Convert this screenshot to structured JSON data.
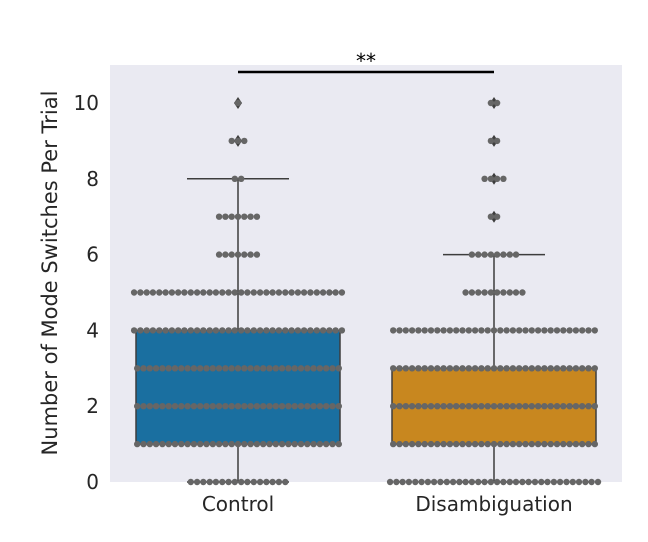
{
  "chart_data": {
    "type": "box",
    "ylabel": "Number of Mode Switches Per Trial",
    "xlabel": "",
    "ylim": [
      0,
      11
    ],
    "yticks": [
      0,
      2,
      4,
      6,
      8,
      10
    ],
    "categories": [
      "Control",
      "Disambiguation"
    ],
    "grid": false,
    "background": "#eaeaf2",
    "swarm_color": "#666666",
    "boxes": [
      {
        "name": "Control",
        "color": "#1a6fa0",
        "whisker_low": 0,
        "q1": 1,
        "median": 3,
        "q3": 4,
        "whisker_high": 8,
        "outliers": [
          9,
          10
        ],
        "swarm": [
          {
            "value": 0,
            "count": 16
          },
          {
            "value": 1,
            "count": 57
          },
          {
            "value": 2,
            "count": 57
          },
          {
            "value": 3,
            "count": 57
          },
          {
            "value": 4,
            "count": 44
          },
          {
            "value": 5,
            "count": 34
          },
          {
            "value": 6,
            "count": 7
          },
          {
            "value": 7,
            "count": 7
          },
          {
            "value": 8,
            "count": 2
          },
          {
            "value": 9,
            "count": 3
          },
          {
            "value": 10,
            "count": 1
          }
        ]
      },
      {
        "name": "Disambiguation",
        "color": "#c8871f",
        "whisker_low": 0,
        "q1": 1,
        "median": 2,
        "q3": 3,
        "whisker_high": 6,
        "outliers": [
          7,
          8,
          9,
          10
        ],
        "swarm": [
          {
            "value": 0,
            "count": 38
          },
          {
            "value": 1,
            "count": 57
          },
          {
            "value": 2,
            "count": 57
          },
          {
            "value": 3,
            "count": 51
          },
          {
            "value": 4,
            "count": 33
          },
          {
            "value": 5,
            "count": 10
          },
          {
            "value": 6,
            "count": 8
          },
          {
            "value": 7,
            "count": 2
          },
          {
            "value": 8,
            "count": 4
          },
          {
            "value": 9,
            "count": 2
          },
          {
            "value": 10,
            "count": 2
          }
        ]
      }
    ],
    "significance": {
      "label": "**",
      "between": [
        "Control",
        "Disambiguation"
      ]
    }
  }
}
